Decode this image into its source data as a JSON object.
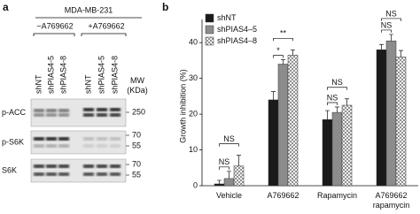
{
  "panel_a": {
    "label": "a",
    "cell_line": "MDA-MB-231",
    "conditions": [
      "−A769662",
      "+A769662"
    ],
    "lanes": [
      "shNT",
      "shPIAS4-5",
      "shPIAS4-8",
      "shNT",
      "shPIAS4-5",
      "shPIAS4-8"
    ],
    "mw_label": "MW (KDa)",
    "blots": [
      {
        "name": "p-ACC",
        "mw": [
          250
        ]
      },
      {
        "name": "p-S6K",
        "mw": [
          70,
          55
        ]
      },
      {
        "name": "S6K",
        "mw": [
          70,
          55
        ]
      }
    ]
  },
  "chart_data": {
    "type": "bar",
    "panel_label": "b",
    "y_label": "Growth inhibition (%)",
    "categories": [
      "Vehicle",
      "A769662",
      "Rapamycin",
      "A769662 rapamycin"
    ],
    "series": [
      {
        "name": "shNT",
        "color": "#1a1a1a",
        "values": [
          0.5,
          24,
          18.5,
          38
        ],
        "errors": [
          1,
          2.3,
          2.5,
          1.5
        ]
      },
      {
        "name": "shPIAS4–5",
        "color": "#8c8c8c",
        "values": [
          2,
          34,
          20.5,
          40.5
        ],
        "errors": [
          2,
          1.2,
          1.5,
          1.8
        ]
      },
      {
        "name": "shPIAS4–8",
        "color": "#ffffff",
        "pattern": "crosshatch",
        "values": [
          5.5,
          36.5,
          22.5,
          36
        ],
        "errors": [
          3,
          1.5,
          1.8,
          1.8
        ]
      }
    ],
    "significance": [
      [
        "NS",
        "NS"
      ],
      [
        "*",
        "**"
      ],
      [
        "NS",
        "NS"
      ],
      [
        "NS",
        "NS"
      ]
    ],
    "ylim": [
      0,
      45
    ],
    "yticks": [
      0,
      10,
      20,
      30,
      40
    ],
    "legend": "upper left"
  }
}
